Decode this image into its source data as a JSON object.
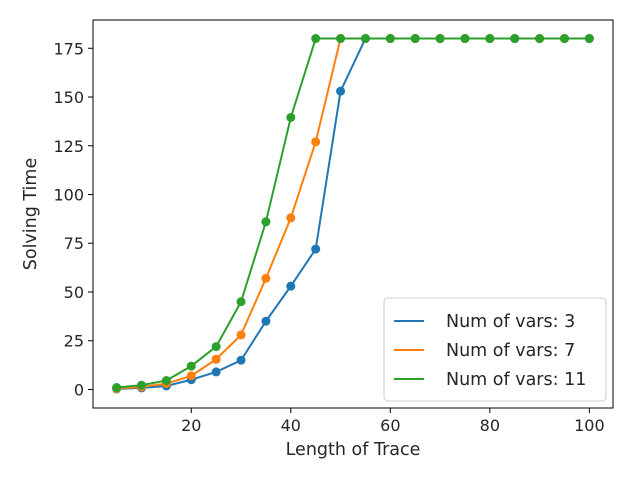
{
  "chart_data": {
    "type": "line",
    "title": "",
    "xlabel": "Length of Trace",
    "ylabel": "Solving Time",
    "xlim": [
      0.25,
      104.75
    ],
    "ylim": [
      -9.5,
      189.5
    ],
    "xticks": [
      20,
      40,
      60,
      80,
      100
    ],
    "yticks": [
      0,
      25,
      50,
      75,
      100,
      125,
      150,
      175
    ],
    "grid": false,
    "legend_position": "lower-right",
    "x": [
      5,
      10,
      15,
      20,
      25,
      30,
      35,
      40,
      45,
      50,
      55,
      60,
      65,
      70,
      75,
      80,
      85,
      90,
      95,
      100
    ],
    "series": [
      {
        "name": "Num of vars: 3",
        "color": "#1f77b4",
        "values": [
          0.3,
          0.8,
          1.8,
          5.0,
          9.0,
          15.0,
          35.0,
          53.0,
          72.0,
          153.0,
          180,
          180,
          180,
          180,
          180,
          180,
          180,
          180,
          180,
          180
        ]
      },
      {
        "name": "Num of vars: 7",
        "color": "#ff7f0e",
        "values": [
          0.5,
          1.3,
          3.0,
          7.0,
          15.5,
          28.0,
          57.0,
          88.0,
          127.0,
          180,
          180,
          180,
          180,
          180,
          180,
          180,
          180,
          180,
          180,
          180
        ]
      },
      {
        "name": "Num of vars: 11",
        "color": "#2ca02c",
        "values": [
          1.0,
          2.2,
          4.6,
          12.0,
          22.0,
          45.0,
          86.0,
          139.5,
          180,
          180,
          180,
          180,
          180,
          180,
          180,
          180,
          180,
          180,
          180,
          180
        ]
      }
    ]
  }
}
